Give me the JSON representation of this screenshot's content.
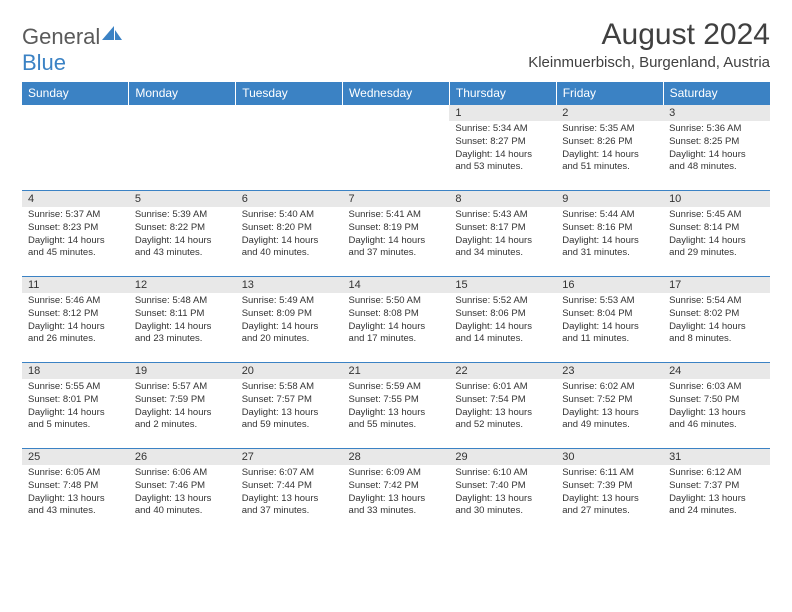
{
  "logo": {
    "text1": "General",
    "text2": "Blue",
    "shape_color": "#3b82c4"
  },
  "title": "August 2024",
  "location": "Kleinmuerbisch, Burgenland, Austria",
  "colors": {
    "header_bg": "#3b82c4",
    "header_text": "#ffffff",
    "daynum_bg": "#e8e8e8",
    "border": "#3b82c4",
    "text": "#333333",
    "logo_gray": "#5a5a5a",
    "logo_blue": "#3b82c4"
  },
  "day_headers": [
    "Sunday",
    "Monday",
    "Tuesday",
    "Wednesday",
    "Thursday",
    "Friday",
    "Saturday"
  ],
  "weeks": [
    [
      null,
      null,
      null,
      null,
      {
        "n": "1",
        "sr": "5:34 AM",
        "ss": "8:27 PM",
        "dl": "14 hours and 53 minutes."
      },
      {
        "n": "2",
        "sr": "5:35 AM",
        "ss": "8:26 PM",
        "dl": "14 hours and 51 minutes."
      },
      {
        "n": "3",
        "sr": "5:36 AM",
        "ss": "8:25 PM",
        "dl": "14 hours and 48 minutes."
      }
    ],
    [
      {
        "n": "4",
        "sr": "5:37 AM",
        "ss": "8:23 PM",
        "dl": "14 hours and 45 minutes."
      },
      {
        "n": "5",
        "sr": "5:39 AM",
        "ss": "8:22 PM",
        "dl": "14 hours and 43 minutes."
      },
      {
        "n": "6",
        "sr": "5:40 AM",
        "ss": "8:20 PM",
        "dl": "14 hours and 40 minutes."
      },
      {
        "n": "7",
        "sr": "5:41 AM",
        "ss": "8:19 PM",
        "dl": "14 hours and 37 minutes."
      },
      {
        "n": "8",
        "sr": "5:43 AM",
        "ss": "8:17 PM",
        "dl": "14 hours and 34 minutes."
      },
      {
        "n": "9",
        "sr": "5:44 AM",
        "ss": "8:16 PM",
        "dl": "14 hours and 31 minutes."
      },
      {
        "n": "10",
        "sr": "5:45 AM",
        "ss": "8:14 PM",
        "dl": "14 hours and 29 minutes."
      }
    ],
    [
      {
        "n": "11",
        "sr": "5:46 AM",
        "ss": "8:12 PM",
        "dl": "14 hours and 26 minutes."
      },
      {
        "n": "12",
        "sr": "5:48 AM",
        "ss": "8:11 PM",
        "dl": "14 hours and 23 minutes."
      },
      {
        "n": "13",
        "sr": "5:49 AM",
        "ss": "8:09 PM",
        "dl": "14 hours and 20 minutes."
      },
      {
        "n": "14",
        "sr": "5:50 AM",
        "ss": "8:08 PM",
        "dl": "14 hours and 17 minutes."
      },
      {
        "n": "15",
        "sr": "5:52 AM",
        "ss": "8:06 PM",
        "dl": "14 hours and 14 minutes."
      },
      {
        "n": "16",
        "sr": "5:53 AM",
        "ss": "8:04 PM",
        "dl": "14 hours and 11 minutes."
      },
      {
        "n": "17",
        "sr": "5:54 AM",
        "ss": "8:02 PM",
        "dl": "14 hours and 8 minutes."
      }
    ],
    [
      {
        "n": "18",
        "sr": "5:55 AM",
        "ss": "8:01 PM",
        "dl": "14 hours and 5 minutes."
      },
      {
        "n": "19",
        "sr": "5:57 AM",
        "ss": "7:59 PM",
        "dl": "14 hours and 2 minutes."
      },
      {
        "n": "20",
        "sr": "5:58 AM",
        "ss": "7:57 PM",
        "dl": "13 hours and 59 minutes."
      },
      {
        "n": "21",
        "sr": "5:59 AM",
        "ss": "7:55 PM",
        "dl": "13 hours and 55 minutes."
      },
      {
        "n": "22",
        "sr": "6:01 AM",
        "ss": "7:54 PM",
        "dl": "13 hours and 52 minutes."
      },
      {
        "n": "23",
        "sr": "6:02 AM",
        "ss": "7:52 PM",
        "dl": "13 hours and 49 minutes."
      },
      {
        "n": "24",
        "sr": "6:03 AM",
        "ss": "7:50 PM",
        "dl": "13 hours and 46 minutes."
      }
    ],
    [
      {
        "n": "25",
        "sr": "6:05 AM",
        "ss": "7:48 PM",
        "dl": "13 hours and 43 minutes."
      },
      {
        "n": "26",
        "sr": "6:06 AM",
        "ss": "7:46 PM",
        "dl": "13 hours and 40 minutes."
      },
      {
        "n": "27",
        "sr": "6:07 AM",
        "ss": "7:44 PM",
        "dl": "13 hours and 37 minutes."
      },
      {
        "n": "28",
        "sr": "6:09 AM",
        "ss": "7:42 PM",
        "dl": "13 hours and 33 minutes."
      },
      {
        "n": "29",
        "sr": "6:10 AM",
        "ss": "7:40 PM",
        "dl": "13 hours and 30 minutes."
      },
      {
        "n": "30",
        "sr": "6:11 AM",
        "ss": "7:39 PM",
        "dl": "13 hours and 27 minutes."
      },
      {
        "n": "31",
        "sr": "6:12 AM",
        "ss": "7:37 PM",
        "dl": "13 hours and 24 minutes."
      }
    ]
  ],
  "labels": {
    "sunrise": "Sunrise: ",
    "sunset": "Sunset: ",
    "daylight": "Daylight: "
  }
}
